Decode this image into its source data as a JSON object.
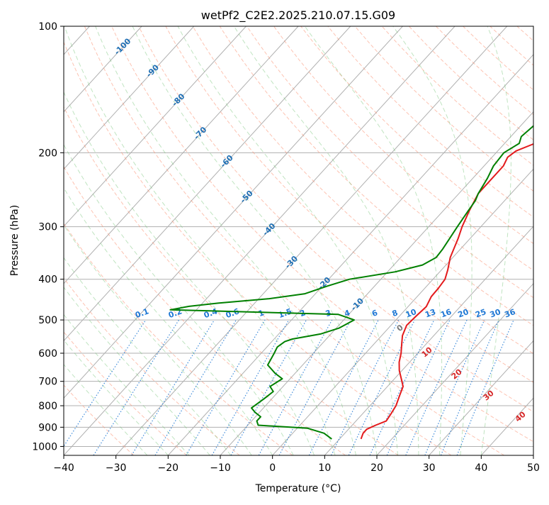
{
  "chart_data": {
    "type": "line",
    "title": "wetPf2_C2E2.2025.210.07.15.G09",
    "xlabel": "Temperature (°C)",
    "ylabel": "Pressure (hPa)",
    "xlim": [
      -40,
      50
    ],
    "ylim": [
      1050,
      100
    ],
    "y_scale": "log",
    "x_ticks": [
      -40,
      -30,
      -20,
      -10,
      0,
      10,
      20,
      30,
      40,
      50
    ],
    "x_tick_labels": [
      "−40",
      "−30",
      "−20",
      "−10",
      "0",
      "10",
      "20",
      "30",
      "40",
      "50"
    ],
    "y_ticks": [
      100,
      200,
      300,
      400,
      500,
      600,
      700,
      800,
      900,
      1000
    ],
    "y_tick_labels": [
      "100",
      "200",
      "300",
      "400",
      "500",
      "600",
      "700",
      "800",
      "900",
      "1000"
    ],
    "grid": true,
    "series": [
      {
        "color": "#e31a1c",
        "points": [
          [
            14.1,
            960
          ],
          [
            13.5,
            930
          ],
          [
            13.5,
            910
          ],
          [
            14.5,
            890
          ],
          [
            15.8,
            870
          ],
          [
            15.5,
            840
          ],
          [
            15.0,
            800
          ],
          [
            14.0,
            760
          ],
          [
            13.0,
            720
          ],
          [
            11.3,
            690
          ],
          [
            9.5,
            660
          ],
          [
            8.0,
            630
          ],
          [
            6.8,
            600
          ],
          [
            5.3,
            570
          ],
          [
            4.0,
            545
          ],
          [
            3.0,
            515
          ],
          [
            3.2,
            490
          ],
          [
            3.5,
            465
          ],
          [
            2.7,
            440
          ],
          [
            2.6,
            420
          ],
          [
            2.3,
            400
          ],
          [
            1.2,
            380
          ],
          [
            -0.5,
            355
          ],
          [
            -2.3,
            320
          ],
          [
            -3.6,
            300
          ],
          [
            -5.0,
            275
          ],
          [
            -6.3,
            250
          ],
          [
            -6.3,
            230
          ],
          [
            -6.3,
            215
          ],
          [
            -7.0,
            205
          ],
          [
            -6.5,
            198
          ],
          [
            -4.5,
            191
          ],
          [
            -1.0,
            184
          ],
          [
            1.5,
            178
          ],
          [
            5.0,
            167
          ],
          [
            9.5,
            155
          ],
          [
            14.0,
            144
          ],
          [
            17.0,
            136
          ],
          [
            19.5,
            128
          ],
          [
            21.0,
            122
          ],
          [
            22.5,
            117
          ],
          [
            23.5,
            114
          ],
          [
            24.0,
            111
          ],
          [
            24.5,
            106
          ],
          [
            25.5,
            100
          ]
        ]
      },
      {
        "color": "#008000",
        "points": [
          [
            8.5,
            960
          ],
          [
            6.0,
            930
          ],
          [
            2.0,
            905
          ],
          [
            -8.0,
            890
          ],
          [
            -9.0,
            870
          ],
          [
            -9.0,
            850
          ],
          [
            -10.8,
            830
          ],
          [
            -12.3,
            810
          ],
          [
            -11.5,
            770
          ],
          [
            -11.0,
            740
          ],
          [
            -12.5,
            720
          ],
          [
            -11.5,
            690
          ],
          [
            -13.8,
            670
          ],
          [
            -16.7,
            640
          ],
          [
            -17.5,
            600
          ],
          [
            -18.0,
            580
          ],
          [
            -17.5,
            563
          ],
          [
            -16.5,
            555
          ],
          [
            -12.0,
            540
          ],
          [
            -9.5,
            523
          ],
          [
            -8.0,
            500
          ],
          [
            -12.0,
            485
          ],
          [
            -45.0,
            473
          ],
          [
            -42.0,
            464
          ],
          [
            -37.0,
            456
          ],
          [
            -28.0,
            445
          ],
          [
            -22.0,
            433
          ],
          [
            -19.0,
            415
          ],
          [
            -16.0,
            400
          ],
          [
            -8.5,
            384
          ],
          [
            -4.5,
            370
          ],
          [
            -3.2,
            355
          ],
          [
            -3.4,
            340
          ],
          [
            -4.5,
            300
          ],
          [
            -5.2,
            275
          ],
          [
            -5.6,
            260
          ],
          [
            -6.3,
            250
          ],
          [
            -7.2,
            230
          ],
          [
            -8.2,
            215
          ],
          [
            -8.5,
            200
          ],
          [
            -7.2,
            190
          ],
          [
            -8.0,
            183
          ],
          [
            -7.5,
            172
          ],
          [
            -5.5,
            158
          ],
          [
            -3.5,
            145
          ],
          [
            -0.5,
            132
          ],
          [
            2.0,
            120
          ],
          [
            5.0,
            111
          ],
          [
            7.5,
            104
          ],
          [
            9.0,
            100
          ]
        ]
      }
    ],
    "isotherm_labels": [
      "-100",
      "-90",
      "-80",
      "-70",
      "-60",
      "-50",
      "-40",
      "-30",
      "-20",
      "-10"
    ],
    "mixing_ratio_labels": [
      "0.1",
      "0.2",
      "0.4",
      "0.6",
      "1",
      "1.5",
      "2",
      "3",
      "4",
      "6",
      "8",
      "10",
      "13",
      "16",
      "20",
      "25",
      "30",
      "36"
    ],
    "moist_adiabat_labels": [
      "0",
      "10",
      "20",
      "30",
      "40"
    ],
    "colors": {
      "temperature": "#e31a1c",
      "dewpoint": "#008000",
      "dry_adiabat": "#fc9272",
      "moist_adiabat": "#74c476",
      "mixing_ratio": "#1f78d4",
      "isotherm_label": "#1f6fb4",
      "moist_label": "#d62728",
      "zero_label": "#777777"
    }
  }
}
